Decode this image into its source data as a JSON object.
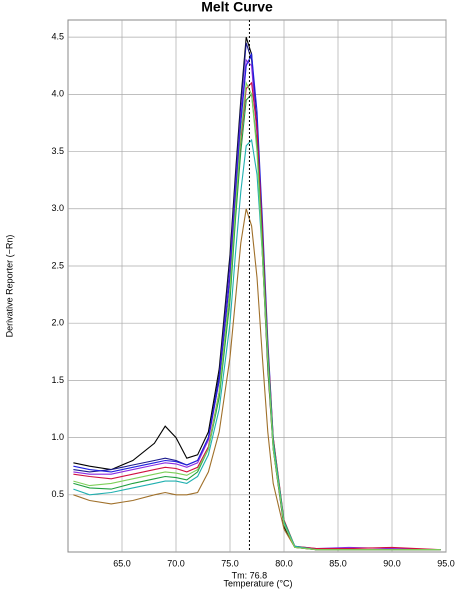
{
  "chart_data": {
    "type": "line",
    "title": "Melt Curve",
    "x_label": "Temperature (°C)",
    "y_label": "Derivative Reporter (−Rn)",
    "x": [
      60.5,
      62,
      64,
      66,
      68,
      69,
      70,
      71,
      72,
      73,
      74,
      75,
      75.5,
      76,
      76.5,
      77,
      77.5,
      78,
      78.5,
      79,
      80,
      81,
      83,
      86,
      90,
      94.5
    ],
    "series": [
      {
        "color": "#000000",
        "values": [
          0.78,
          0.75,
          0.72,
          0.8,
          0.95,
          1.1,
          1.0,
          0.82,
          0.85,
          1.05,
          1.6,
          2.6,
          3.3,
          3.95,
          4.5,
          4.35,
          3.7,
          2.6,
          1.6,
          0.9,
          0.22,
          0.04,
          0.02,
          0.02,
          0.02,
          0.02
        ]
      },
      {
        "color": "#1a1a8c",
        "values": [
          0.72,
          0.7,
          0.72,
          0.76,
          0.8,
          0.82,
          0.8,
          0.76,
          0.8,
          1.0,
          1.55,
          2.55,
          3.25,
          3.9,
          4.45,
          4.3,
          3.7,
          2.7,
          1.7,
          0.95,
          0.25,
          0.05,
          0.02,
          0.02,
          0.02,
          0.02
        ]
      },
      {
        "color": "#8a2be2",
        "values": [
          0.7,
          0.68,
          0.68,
          0.72,
          0.76,
          0.78,
          0.77,
          0.74,
          0.78,
          0.98,
          1.5,
          2.45,
          3.15,
          3.8,
          4.3,
          4.25,
          3.65,
          2.7,
          1.7,
          0.95,
          0.24,
          0.05,
          0.03,
          0.04,
          0.03,
          0.02
        ]
      },
      {
        "color": "#2020e0",
        "values": [
          0.75,
          0.72,
          0.7,
          0.74,
          0.78,
          0.8,
          0.79,
          0.76,
          0.8,
          1.0,
          1.5,
          2.4,
          3.1,
          3.75,
          4.25,
          4.35,
          3.85,
          2.9,
          1.85,
          1.0,
          0.26,
          0.05,
          0.02,
          0.02,
          0.02,
          0.02
        ]
      },
      {
        "color": "#d01040",
        "values": [
          0.68,
          0.66,
          0.64,
          0.68,
          0.72,
          0.74,
          0.73,
          0.7,
          0.74,
          0.92,
          1.4,
          2.3,
          3.0,
          3.6,
          4.05,
          4.1,
          3.7,
          2.8,
          1.8,
          1.0,
          0.28,
          0.05,
          0.03,
          0.03,
          0.04,
          0.02
        ]
      },
      {
        "color": "#20a040",
        "values": [
          0.6,
          0.56,
          0.55,
          0.6,
          0.64,
          0.66,
          0.65,
          0.63,
          0.7,
          0.9,
          1.35,
          2.2,
          2.9,
          3.5,
          3.95,
          4.0,
          3.55,
          2.7,
          1.75,
          0.98,
          0.27,
          0.05,
          0.02,
          0.02,
          0.02,
          0.02
        ]
      },
      {
        "color": "#20b0b0",
        "values": [
          0.55,
          0.5,
          0.52,
          0.56,
          0.6,
          0.62,
          0.62,
          0.6,
          0.66,
          0.85,
          1.25,
          2.0,
          2.6,
          3.15,
          3.55,
          3.6,
          3.3,
          2.6,
          1.7,
          0.95,
          0.26,
          0.05,
          0.02,
          0.02,
          0.02,
          0.02
        ]
      },
      {
        "color": "#a0702a",
        "values": [
          0.5,
          0.45,
          0.42,
          0.45,
          0.5,
          0.52,
          0.5,
          0.5,
          0.52,
          0.7,
          1.05,
          1.7,
          2.2,
          2.7,
          3.0,
          2.85,
          2.4,
          1.7,
          1.05,
          0.6,
          0.2,
          0.04,
          0.02,
          0.02,
          0.02,
          0.02
        ]
      },
      {
        "color": "#7ed05a",
        "values": [
          0.62,
          0.58,
          0.6,
          0.64,
          0.68,
          0.7,
          0.69,
          0.67,
          0.72,
          0.9,
          1.4,
          2.3,
          3.0,
          3.65,
          4.1,
          4.0,
          3.5,
          2.6,
          1.65,
          0.9,
          0.24,
          0.04,
          0.02,
          0.02,
          0.02,
          0.02
        ]
      }
    ],
    "xlim": [
      60,
      95
    ],
    "ylim": [
      0,
      4.65
    ],
    "xticks": [
      {
        "value": 65,
        "label": "65.0"
      },
      {
        "value": 70,
        "label": "70.0"
      },
      {
        "value": 75,
        "label": "75.0"
      },
      {
        "value": 80,
        "label": "80.0"
      },
      {
        "value": 85,
        "label": "85.0"
      },
      {
        "value": 90,
        "label": "90.0"
      },
      {
        "value": 95,
        "label": "95.0"
      }
    ],
    "yticks": [
      0.5,
      {
        "value": 1,
        "label": "1.0"
      },
      1.5,
      {
        "value": 2,
        "label": "2.0"
      },
      2.5,
      {
        "value": 3,
        "label": "3.0"
      },
      3.5,
      {
        "value": 4,
        "label": "4.0"
      },
      4.5
    ],
    "grid": true,
    "annotation": {
      "label": "Tm: 76.8",
      "x": 76.8
    }
  }
}
